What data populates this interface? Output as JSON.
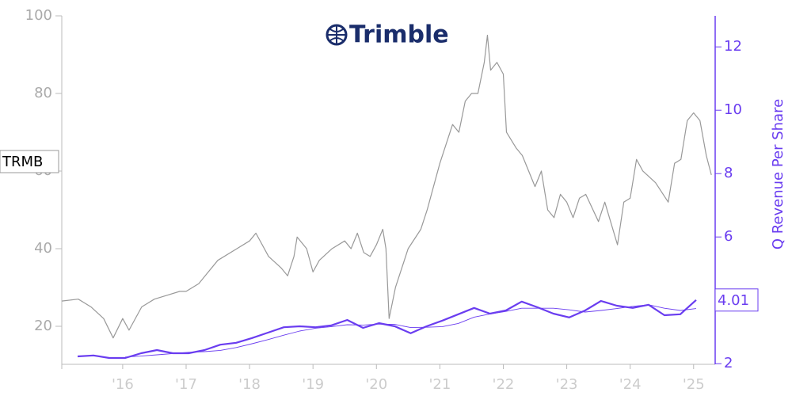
{
  "chart_data": {
    "type": "line",
    "logo": "Trimble",
    "ticker": "TRMB",
    "y2label": "Q Revenue Per Share",
    "xlim": [
      2015.04,
      2025.34
    ],
    "xticks": [
      {
        "value": 2016,
        "label": "'16"
      },
      {
        "value": 2017,
        "label": "'17"
      },
      {
        "value": 2018,
        "label": "'18"
      },
      {
        "value": 2019,
        "label": "'19"
      },
      {
        "value": 2020,
        "label": "'20"
      },
      {
        "value": 2021,
        "label": "'21"
      },
      {
        "value": 2022,
        "label": "'22"
      },
      {
        "value": 2023,
        "label": "'23"
      },
      {
        "value": 2024,
        "label": "'24"
      },
      {
        "value": 2025,
        "label": "'25"
      }
    ],
    "ylim": [
      10.2,
      100
    ],
    "yticks": [
      20,
      40,
      60,
      80,
      100
    ],
    "y2lim": [
      1.98,
      12.98
    ],
    "y2ticks": [
      2,
      4,
      6,
      8,
      10,
      12
    ],
    "series": [
      {
        "color": "#999999",
        "line_width": 1.2,
        "x": [
          2015.04,
          2015.3,
          2015.5,
          2015.7,
          2015.85,
          2016.0,
          2016.1,
          2016.3,
          2016.5,
          2016.7,
          2016.9,
          2017.0,
          2017.2,
          2017.3,
          2017.5,
          2017.8,
          2018.0,
          2018.1,
          2018.3,
          2018.5,
          2018.6,
          2018.7,
          2018.75,
          2018.9,
          2019.0,
          2019.1,
          2019.3,
          2019.5,
          2019.6,
          2019.7,
          2019.8,
          2019.9,
          2020.0,
          2020.1,
          2020.15,
          2020.2,
          2020.25,
          2020.3,
          2020.4,
          2020.5,
          2020.7,
          2020.8,
          2020.9,
          2021.0,
          2021.1,
          2021.2,
          2021.3,
          2021.4,
          2021.5,
          2021.6,
          2021.7,
          2021.75,
          2021.8,
          2021.9,
          2022.0,
          2022.05,
          2022.2,
          2022.3,
          2022.4,
          2022.5,
          2022.6,
          2022.7,
          2022.8,
          2022.9,
          2023.0,
          2023.1,
          2023.2,
          2023.3,
          2023.5,
          2023.6,
          2023.8,
          2023.9,
          2024.0,
          2024.1,
          2024.2,
          2024.4,
          2024.6,
          2024.7,
          2024.8,
          2024.9,
          2025.0,
          2025.1,
          2025.2,
          2025.28
        ],
        "values": [
          26.5,
          27,
          25,
          22,
          17,
          22,
          19,
          25,
          27,
          28,
          29,
          29,
          31,
          33,
          37,
          40,
          42,
          44,
          38,
          35,
          33,
          38,
          43,
          40,
          34,
          37,
          40,
          42,
          40,
          44,
          39,
          38,
          41,
          45,
          40,
          22,
          26,
          30,
          35,
          40,
          45,
          50,
          56,
          62,
          67,
          72,
          70,
          78,
          80,
          80,
          88,
          95,
          86,
          88,
          85,
          70,
          66,
          64,
          60,
          56,
          60,
          50,
          48,
          54,
          52,
          48,
          53,
          54,
          47,
          52,
          41,
          52,
          53,
          63,
          60,
          57,
          52,
          62,
          63,
          73,
          75,
          73,
          64,
          59
        ]
      },
      {
        "axis": "y2",
        "color": "#6a3df0",
        "line_width": 2.2,
        "x": [
          2015.29,
          2015.54,
          2015.79,
          2016.04,
          2016.29,
          2016.54,
          2016.79,
          2017.04,
          2017.29,
          2017.54,
          2017.79,
          2018.04,
          2018.29,
          2018.54,
          2018.79,
          2019.04,
          2019.29,
          2019.54,
          2019.79,
          2020.04,
          2020.29,
          2020.54,
          2020.79,
          2021.04,
          2021.29,
          2021.54,
          2021.79,
          2022.04,
          2022.29,
          2022.54,
          2022.79,
          2023.04,
          2023.29,
          2023.54,
          2023.79,
          2024.04,
          2024.29,
          2024.54,
          2024.79,
          2025.04
        ],
        "values": [
          2.23,
          2.26,
          2.18,
          2.18,
          2.33,
          2.43,
          2.33,
          2.33,
          2.43,
          2.6,
          2.66,
          2.81,
          2.98,
          3.15,
          3.18,
          3.15,
          3.21,
          3.38,
          3.13,
          3.28,
          3.18,
          2.96,
          3.18,
          3.36,
          3.56,
          3.76,
          3.58,
          3.68,
          3.96,
          3.78,
          3.58,
          3.46,
          3.68,
          3.98,
          3.83,
          3.76,
          3.86,
          3.53,
          3.56,
          4.01
        ]
      },
      {
        "axis": "y2",
        "color": "#6a3df0",
        "line_width": 0.9,
        "x": [
          2015.29,
          2015.54,
          2015.79,
          2016.04,
          2016.29,
          2016.54,
          2016.79,
          2017.04,
          2017.29,
          2017.54,
          2017.79,
          2018.04,
          2018.29,
          2018.54,
          2018.79,
          2019.04,
          2019.29,
          2019.54,
          2019.79,
          2020.04,
          2020.29,
          2020.54,
          2020.79,
          2021.04,
          2021.29,
          2021.54,
          2021.79,
          2022.04,
          2022.29,
          2022.54,
          2022.79,
          2023.04,
          2023.29,
          2023.54,
          2023.79,
          2024.04,
          2024.29,
          2024.54,
          2024.79,
          2025.04
        ],
        "values": [
          null,
          null,
          null,
          2.21,
          2.24,
          2.28,
          2.32,
          2.36,
          2.38,
          2.42,
          2.51,
          2.63,
          2.76,
          2.9,
          3.03,
          3.12,
          3.17,
          3.23,
          3.22,
          3.25,
          3.24,
          3.14,
          3.15,
          3.17,
          3.27,
          3.47,
          3.57,
          3.65,
          3.75,
          3.75,
          3.75,
          3.7,
          3.63,
          3.68,
          3.74,
          3.81,
          3.86,
          3.75,
          3.68,
          3.74
        ]
      }
    ]
  }
}
